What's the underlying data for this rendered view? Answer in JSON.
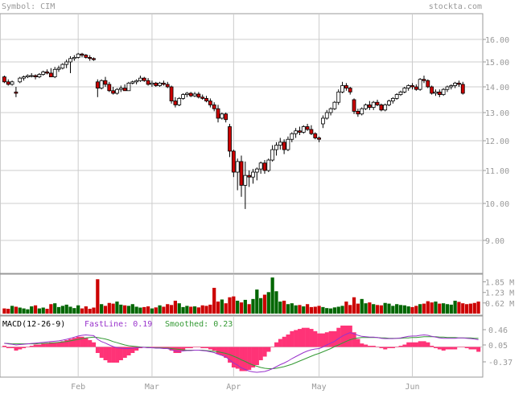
{
  "header": {
    "symbol_text": "Symbol: CIM",
    "brand_text": "stockta.com"
  },
  "colors": {
    "frame": "#999999",
    "grid": "#cccccc",
    "text": "#999999",
    "up_body": "#ffffff",
    "down_body": "#cc0000",
    "wick": "#000000",
    "vol_up": "#006600",
    "vol_down": "#cc0000",
    "fastline": "#9933cc",
    "smoothed": "#339933",
    "histogram": "#ff3377",
    "zero_line": "#cccccc"
  },
  "chart_data": [
    {
      "type": "candlestick",
      "title": "",
      "y_ticks": [
        16.0,
        15.0,
        14.0,
        13.0,
        12.0,
        11.0,
        10.0,
        9.0
      ],
      "y_ticks_labels": [
        "16.00",
        "15.00",
        "14.00",
        "13.00",
        "12.00",
        "11.00",
        "10.00",
        "9.00"
      ],
      "x_labels": [
        "Feb",
        "Mar",
        "Apr",
        "May",
        "Jun"
      ],
      "x_label_sessions": [
        19,
        38,
        59,
        81,
        105
      ],
      "grid": true,
      "sessions": 123,
      "candles": [
        [
          14.4,
          14.45,
          14.15,
          14.2
        ],
        [
          14.2,
          14.3,
          14.05,
          14.1
        ],
        [
          14.1,
          14.25,
          14.05,
          14.2
        ],
        [
          13.8,
          14.0,
          13.6,
          13.75
        ],
        [
          14.2,
          14.4,
          14.15,
          14.35
        ],
        [
          14.35,
          14.45,
          14.25,
          14.4
        ],
        [
          14.4,
          14.5,
          14.35,
          14.45
        ],
        [
          14.45,
          14.55,
          14.38,
          14.45
        ],
        [
          14.45,
          14.5,
          14.3,
          14.4
        ],
        [
          14.4,
          14.55,
          14.35,
          14.5
        ],
        [
          14.5,
          14.65,
          14.45,
          14.6
        ],
        [
          14.6,
          14.7,
          14.5,
          14.55
        ],
        [
          14.55,
          14.75,
          14.45,
          14.4
        ],
        [
          14.4,
          14.8,
          14.35,
          14.7
        ],
        [
          14.7,
          14.85,
          14.6,
          14.75
        ],
        [
          14.75,
          14.95,
          14.7,
          14.9
        ],
        [
          14.9,
          15.1,
          14.75,
          15.0
        ],
        [
          15.0,
          15.25,
          14.55,
          15.15
        ],
        [
          15.15,
          15.3,
          15.05,
          15.2
        ],
        [
          15.2,
          15.4,
          15.15,
          15.35
        ],
        [
          15.35,
          15.4,
          15.2,
          15.3
        ],
        [
          15.3,
          15.35,
          15.15,
          15.2
        ],
        [
          15.2,
          15.3,
          15.05,
          15.15
        ],
        [
          15.15,
          15.2,
          15.05,
          15.1
        ],
        [
          14.2,
          14.3,
          13.6,
          13.95
        ],
        [
          13.95,
          14.3,
          13.9,
          14.25
        ],
        [
          14.25,
          14.4,
          14.0,
          14.1
        ],
        [
          14.1,
          14.2,
          13.8,
          13.85
        ],
        [
          13.85,
          14.0,
          13.7,
          13.75
        ],
        [
          13.75,
          13.95,
          13.7,
          13.9
        ],
        [
          13.9,
          14.05,
          13.8,
          13.95
        ],
        [
          13.95,
          14.1,
          13.9,
          13.85
        ],
        [
          13.85,
          14.2,
          13.85,
          14.15
        ],
        [
          14.15,
          14.25,
          14.1,
          14.2
        ],
        [
          14.2,
          14.3,
          14.1,
          14.25
        ],
        [
          14.25,
          14.45,
          14.2,
          14.35
        ],
        [
          14.35,
          14.4,
          14.2,
          14.25
        ],
        [
          14.25,
          14.35,
          14.05,
          14.1
        ],
        [
          14.1,
          14.25,
          14.0,
          14.15
        ],
        [
          14.15,
          14.2,
          14.0,
          14.05
        ],
        [
          14.05,
          14.2,
          14.0,
          14.15
        ],
        [
          14.15,
          14.25,
          14.05,
          14.1
        ],
        [
          14.1,
          14.2,
          13.95,
          14.0
        ],
        [
          14.0,
          14.05,
          13.35,
          13.45
        ],
        [
          13.45,
          13.6,
          13.2,
          13.3
        ],
        [
          13.3,
          13.6,
          13.25,
          13.55
        ],
        [
          13.55,
          13.75,
          13.5,
          13.7
        ],
        [
          13.7,
          13.8,
          13.6,
          13.75
        ],
        [
          13.75,
          13.8,
          13.6,
          13.65
        ],
        [
          13.65,
          13.8,
          13.6,
          13.72
        ],
        [
          13.72,
          13.8,
          13.55,
          13.6
        ],
        [
          13.6,
          13.7,
          13.5,
          13.55
        ],
        [
          13.55,
          13.65,
          13.4,
          13.45
        ],
        [
          13.45,
          13.55,
          13.2,
          13.3
        ],
        [
          13.3,
          13.4,
          13.05,
          13.15
        ],
        [
          13.15,
          13.3,
          12.65,
          12.8
        ],
        [
          12.8,
          13.0,
          12.75,
          12.95
        ],
        [
          12.95,
          13.0,
          12.65,
          12.75
        ],
        [
          12.5,
          12.6,
          11.45,
          11.65
        ],
        [
          11.65,
          11.7,
          10.8,
          10.95
        ],
        [
          10.95,
          11.4,
          10.4,
          11.3
        ],
        [
          11.3,
          11.5,
          10.2,
          10.55
        ],
        [
          10.55,
          11.3,
          9.85,
          10.85
        ],
        [
          10.85,
          11.0,
          10.5,
          10.8
        ],
        [
          10.8,
          11.05,
          10.6,
          10.95
        ],
        [
          10.95,
          11.1,
          10.7,
          11.05
        ],
        [
          11.05,
          11.3,
          10.9,
          11.25
        ],
        [
          11.25,
          11.35,
          10.9,
          11.0
        ],
        [
          11.0,
          11.4,
          10.95,
          11.35
        ],
        [
          11.35,
          11.85,
          11.3,
          11.7
        ],
        [
          11.7,
          11.95,
          11.5,
          11.85
        ],
        [
          11.85,
          12.1,
          11.7,
          11.95
        ],
        [
          11.95,
          12.05,
          11.55,
          11.7
        ],
        [
          11.7,
          12.15,
          11.65,
          12.05
        ],
        [
          12.05,
          12.3,
          11.95,
          12.25
        ],
        [
          12.25,
          12.45,
          12.1,
          12.35
        ],
        [
          12.35,
          12.5,
          12.2,
          12.3
        ],
        [
          12.3,
          12.55,
          12.25,
          12.5
        ],
        [
          12.5,
          12.6,
          12.35,
          12.4
        ],
        [
          12.4,
          12.55,
          12.2,
          12.25
        ],
        [
          12.25,
          12.3,
          12.05,
          12.1
        ],
        [
          12.1,
          12.15,
          11.95,
          12.05
        ],
        [
          12.6,
          12.9,
          12.45,
          12.8
        ],
        [
          12.8,
          13.1,
          12.75,
          13.0
        ],
        [
          13.0,
          13.2,
          12.9,
          13.15
        ],
        [
          13.15,
          13.45,
          13.1,
          13.4
        ],
        [
          13.4,
          13.9,
          13.3,
          13.8
        ],
        [
          13.8,
          14.2,
          13.75,
          14.05
        ],
        [
          14.05,
          14.15,
          13.85,
          13.95
        ],
        [
          13.95,
          14.0,
          13.7,
          13.8
        ],
        [
          13.5,
          13.55,
          12.95,
          13.05
        ],
        [
          13.05,
          13.15,
          12.85,
          12.95
        ],
        [
          12.95,
          13.2,
          12.9,
          13.15
        ],
        [
          13.15,
          13.35,
          13.1,
          13.3
        ],
        [
          13.3,
          13.45,
          13.1,
          13.2
        ],
        [
          13.2,
          13.45,
          13.1,
          13.4
        ],
        [
          13.4,
          13.5,
          13.25,
          13.3
        ],
        [
          13.3,
          13.35,
          13.05,
          13.1
        ],
        [
          13.1,
          13.35,
          13.05,
          13.3
        ],
        [
          13.3,
          13.5,
          13.25,
          13.45
        ],
        [
          13.45,
          13.6,
          13.35,
          13.55
        ],
        [
          13.55,
          13.75,
          13.5,
          13.7
        ],
        [
          13.7,
          13.85,
          13.65,
          13.8
        ],
        [
          13.8,
          14.0,
          13.75,
          13.95
        ],
        [
          13.95,
          14.1,
          13.85,
          14.05
        ],
        [
          14.05,
          14.15,
          13.9,
          14.0
        ],
        [
          14.0,
          14.1,
          13.85,
          13.9
        ],
        [
          13.9,
          14.35,
          13.85,
          14.3
        ],
        [
          14.3,
          14.45,
          14.15,
          14.25
        ],
        [
          14.25,
          14.3,
          13.95,
          14.0
        ],
        [
          14.0,
          14.05,
          13.7,
          13.75
        ],
        [
          13.75,
          13.9,
          13.65,
          13.8
        ],
        [
          13.8,
          13.9,
          13.6,
          13.7
        ],
        [
          13.7,
          13.95,
          13.65,
          13.9
        ],
        [
          13.9,
          14.05,
          13.8,
          14.0
        ],
        [
          14.0,
          14.1,
          13.9,
          14.05
        ],
        [
          14.05,
          14.2,
          13.95,
          14.15
        ],
        [
          14.15,
          14.25,
          14.0,
          14.1
        ],
        [
          14.1,
          14.2,
          13.7,
          13.75
        ]
      ]
    },
    {
      "type": "bar",
      "title": "",
      "y_ticks_labels": [
        "1.85 M",
        "1.23 M",
        "0.62 M"
      ],
      "y_ticks": [
        1.85,
        1.23,
        0.62
      ],
      "unit": "M",
      "volumes": [
        0.3,
        0.28,
        0.45,
        0.4,
        0.35,
        0.3,
        0.25,
        0.42,
        0.48,
        0.3,
        0.35,
        0.28,
        0.55,
        0.6,
        0.38,
        0.45,
        0.52,
        0.4,
        0.32,
        0.48,
        0.3,
        0.42,
        0.28,
        0.35,
        2.0,
        0.55,
        0.45,
        0.62,
        0.58,
        0.7,
        0.52,
        0.48,
        0.45,
        0.55,
        0.4,
        0.35,
        0.38,
        0.42,
        0.3,
        0.36,
        0.48,
        0.4,
        0.55,
        0.5,
        0.75,
        0.6,
        0.38,
        0.45,
        0.4,
        0.42,
        0.36,
        0.48,
        0.45,
        0.52,
        1.5,
        0.7,
        0.82,
        0.6,
        0.95,
        1.0,
        0.75,
        0.65,
        0.8,
        0.55,
        0.85,
        1.4,
        0.9,
        1.1,
        1.25,
        2.1,
        1.3,
        0.7,
        0.75,
        0.55,
        0.6,
        0.48,
        0.5,
        0.42,
        0.55,
        0.38,
        0.4,
        0.45,
        0.38,
        0.32,
        0.3,
        0.36,
        0.4,
        0.45,
        0.7,
        0.5,
        0.95,
        0.58,
        0.85,
        0.6,
        0.65,
        0.55,
        0.5,
        0.48,
        0.62,
        0.58,
        0.45,
        0.55,
        0.5,
        0.48,
        0.42,
        0.38,
        0.45,
        0.55,
        0.58,
        0.72,
        0.65,
        0.7,
        0.58,
        0.6,
        0.55,
        0.52,
        0.75,
        0.68,
        0.6,
        0.55,
        0.58,
        0.62,
        0.7
      ]
    },
    {
      "type": "line",
      "title": "MACD(12-26-9)",
      "y_ticks": [
        0.46,
        0.05,
        -0.37
      ],
      "y_ticks_labels": [
        "0.46",
        "0.05",
        "-0.37"
      ],
      "series": [
        {
          "name": "FastLine",
          "value_label": "0.19"
        },
        {
          "name": "Smoothed",
          "value_label": "0.23"
        }
      ],
      "fast": [
        0.1,
        0.08,
        0.07,
        0.05,
        0.06,
        0.07,
        0.08,
        0.09,
        0.1,
        0.11,
        0.12,
        0.13,
        0.14,
        0.15,
        0.16,
        0.18,
        0.2,
        0.23,
        0.26,
        0.29,
        0.31,
        0.32,
        0.31,
        0.3,
        0.2,
        0.14,
        0.1,
        0.05,
        0.01,
        -0.02,
        -0.03,
        -0.04,
        -0.04,
        -0.03,
        -0.02,
        -0.01,
        -0.01,
        -0.02,
        -0.02,
        -0.03,
        -0.03,
        -0.04,
        -0.04,
        -0.07,
        -0.1,
        -0.11,
        -0.1,
        -0.09,
        -0.09,
        -0.08,
        -0.08,
        -0.09,
        -0.1,
        -0.12,
        -0.14,
        -0.18,
        -0.21,
        -0.25,
        -0.32,
        -0.4,
        -0.45,
        -0.52,
        -0.56,
        -0.6,
        -0.62,
        -0.63,
        -0.62,
        -0.61,
        -0.58,
        -0.54,
        -0.49,
        -0.44,
        -0.4,
        -0.35,
        -0.29,
        -0.24,
        -0.19,
        -0.14,
        -0.1,
        -0.07,
        -0.05,
        -0.04,
        0.0,
        0.05,
        0.1,
        0.15,
        0.22,
        0.29,
        0.34,
        0.38,
        0.35,
        0.31,
        0.28,
        0.27,
        0.26,
        0.26,
        0.25,
        0.23,
        0.22,
        0.22,
        0.22,
        0.23,
        0.24,
        0.26,
        0.28,
        0.29,
        0.29,
        0.31,
        0.32,
        0.31,
        0.28,
        0.26,
        0.24,
        0.23,
        0.23,
        0.23,
        0.23,
        0.24,
        0.24,
        0.23,
        0.22,
        0.21,
        0.19
      ],
      "smoothed": [
        0.09,
        0.09,
        0.08,
        0.08,
        0.08,
        0.08,
        0.08,
        0.08,
        0.08,
        0.09,
        0.09,
        0.1,
        0.1,
        0.11,
        0.12,
        0.13,
        0.14,
        0.16,
        0.18,
        0.2,
        0.22,
        0.24,
        0.25,
        0.26,
        0.25,
        0.23,
        0.21,
        0.18,
        0.14,
        0.11,
        0.08,
        0.05,
        0.03,
        0.02,
        0.01,
        0.0,
        -0.01,
        -0.01,
        -0.02,
        -0.02,
        -0.02,
        -0.03,
        -0.03,
        -0.04,
        -0.05,
        -0.06,
        -0.07,
        -0.08,
        -0.08,
        -0.08,
        -0.08,
        -0.08,
        -0.09,
        -0.1,
        -0.11,
        -0.12,
        -0.14,
        -0.16,
        -0.19,
        -0.23,
        -0.27,
        -0.32,
        -0.36,
        -0.41,
        -0.45,
        -0.48,
        -0.51,
        -0.53,
        -0.54,
        -0.54,
        -0.53,
        -0.51,
        -0.49,
        -0.46,
        -0.43,
        -0.39,
        -0.35,
        -0.31,
        -0.27,
        -0.23,
        -0.19,
        -0.16,
        -0.12,
        -0.08,
        -0.04,
        0.01,
        0.05,
        0.1,
        0.15,
        0.19,
        0.22,
        0.24,
        0.25,
        0.25,
        0.25,
        0.25,
        0.25,
        0.24,
        0.24,
        0.23,
        0.23,
        0.23,
        0.23,
        0.24,
        0.24,
        0.25,
        0.25,
        0.26,
        0.27,
        0.27,
        0.27,
        0.27,
        0.26,
        0.26,
        0.25,
        0.25,
        0.25,
        0.24,
        0.24,
        0.24,
        0.24,
        0.23,
        0.23
      ]
    }
  ]
}
